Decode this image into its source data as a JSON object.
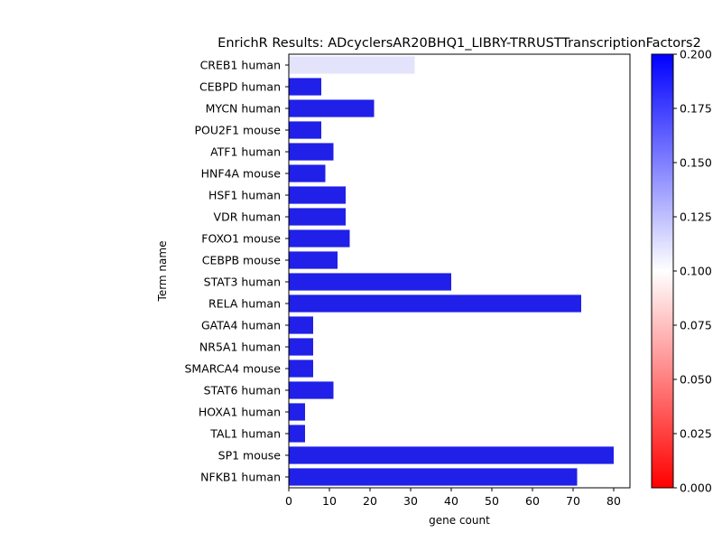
{
  "chart_data": {
    "type": "bar",
    "orientation": "horizontal",
    "title": "EnrichR Results: ADcyclersAR20BHQ1_LIBRY-TRRUSTTranscriptionFactors2",
    "xlabel": "gene count",
    "ylabel": "Term name",
    "xlim": [
      0,
      84
    ],
    "xticks": [
      0,
      10,
      20,
      30,
      40,
      50,
      60,
      70,
      80
    ],
    "grid": false,
    "categories": [
      "CREB1 human",
      "CEBPD human",
      "MYCN human",
      "POU2F1 mouse",
      "ATF1 human",
      "HNF4A mouse",
      "HSF1 human",
      "VDR human",
      "FOXO1 mouse",
      "CEBPB mouse",
      "STAT3 human",
      "RELA human",
      "GATA4 human",
      "NR5A1 human",
      "SMARCA4 mouse",
      "STAT6 human",
      "HOXA1 human",
      "TAL1 human",
      "SP1 mouse",
      "NFKB1 human"
    ],
    "values": [
      31,
      8,
      21,
      8,
      11,
      9,
      14,
      14,
      15,
      12,
      40,
      72,
      6,
      6,
      6,
      11,
      4,
      4,
      80,
      71
    ],
    "colors": [
      "#e3e3fb",
      "#2020e8",
      "#2020e8",
      "#2020e8",
      "#2020e8",
      "#2020e8",
      "#2020e8",
      "#2020e8",
      "#2020e8",
      "#2020e8",
      "#2020e8",
      "#2020e8",
      "#2020e8",
      "#2020e8",
      "#2020e8",
      "#2020e8",
      "#2020e8",
      "#2020e8",
      "#2020e8",
      "#2020e8"
    ],
    "colorbar": {
      "range": [
        0.0,
        0.2
      ],
      "ticks": [
        "0.000",
        "0.025",
        "0.050",
        "0.075",
        "0.100",
        "0.125",
        "0.150",
        "0.175",
        "0.200"
      ],
      "colormap": [
        "#ff0000",
        "#ffffff",
        "#0000ff"
      ]
    }
  }
}
